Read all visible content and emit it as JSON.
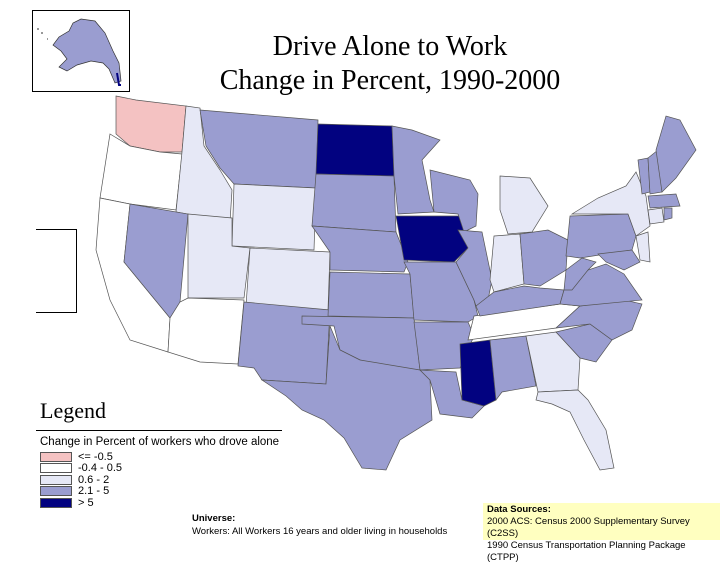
{
  "title_line1": "Drive Alone to Work",
  "title_line2": "Change in Percent, 1990-2000",
  "legend": {
    "title": "Legend",
    "heading": "Change in Percent of workers who drove alone",
    "items": [
      {
        "label": "<= -0.5",
        "color": "#f4c2c2"
      },
      {
        "label": "-0.4 - 0.5",
        "color": "#ffffff"
      },
      {
        "label": "0.6 - 2",
        "color": "#e6e8f6"
      },
      {
        "label": "2.1 - 5",
        "color": "#9a9dd0"
      },
      {
        "label": "> 5",
        "color": "#020280"
      }
    ]
  },
  "universe": {
    "label": "Universe:",
    "text": "Workers: All Workers 16 years and older living in households"
  },
  "sources": {
    "label": "Data Sources:",
    "line1": "2000 ACS: Census 2000 Supplementary Survey (C2SS)",
    "line2": "1990 Census Transportation Planning Package (CTPP)"
  },
  "colors": {
    "c1": "#f4c2c2",
    "c2": "#ffffff",
    "c3": "#e6e8f6",
    "c4": "#9a9dd0",
    "c5": "#020280"
  }
}
